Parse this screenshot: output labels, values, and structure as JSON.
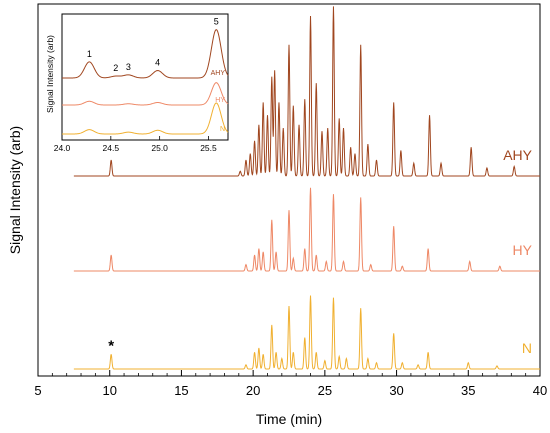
{
  "chart_data": {
    "type": "line",
    "xlabel": "Time (min)",
    "ylabel": "Signal Intensity (arb)",
    "xlim": [
      5,
      40
    ],
    "x_ticks": [
      5,
      10,
      15,
      20,
      25,
      30,
      35,
      40
    ],
    "y_ticks": "none",
    "grid": false,
    "legend": "inline labels at right end of each trace",
    "series": [
      {
        "name": "AHY",
        "color": "#a0461f",
        "baseline": 0,
        "peaks": [
          [
            10.1,
            0.1
          ],
          [
            19.1,
            0.03
          ],
          [
            19.5,
            0.1
          ],
          [
            19.8,
            0.14
          ],
          [
            20.1,
            0.22
          ],
          [
            20.4,
            0.32
          ],
          [
            20.7,
            0.46
          ],
          [
            21.0,
            0.38
          ],
          [
            21.3,
            0.62
          ],
          [
            21.5,
            0.66
          ],
          [
            21.8,
            0.46
          ],
          [
            22.1,
            0.3
          ],
          [
            22.5,
            0.82
          ],
          [
            22.8,
            0.44
          ],
          [
            23.2,
            0.32
          ],
          [
            23.6,
            0.48
          ],
          [
            24.0,
            1.0
          ],
          [
            24.4,
            0.58
          ],
          [
            24.8,
            0.28
          ],
          [
            25.2,
            0.3
          ],
          [
            25.6,
            1.06
          ],
          [
            26.0,
            0.36
          ],
          [
            26.3,
            0.3
          ],
          [
            26.8,
            0.18
          ],
          [
            27.1,
            0.14
          ],
          [
            27.5,
            0.82
          ],
          [
            28.0,
            0.2
          ],
          [
            28.6,
            0.1
          ],
          [
            29.8,
            0.46
          ],
          [
            30.3,
            0.16
          ],
          [
            31.2,
            0.08
          ],
          [
            32.3,
            0.38
          ],
          [
            33.1,
            0.08
          ],
          [
            35.2,
            0.18
          ],
          [
            36.3,
            0.05
          ],
          [
            38.2,
            0.06
          ]
        ]
      },
      {
        "name": "HY",
        "color": "#ee8866",
        "baseline": 0,
        "peaks": [
          [
            10.1,
            0.1
          ],
          [
            19.5,
            0.04
          ],
          [
            20.1,
            0.1
          ],
          [
            20.4,
            0.14
          ],
          [
            20.7,
            0.12
          ],
          [
            21.3,
            0.32
          ],
          [
            21.6,
            0.12
          ],
          [
            22.5,
            0.38
          ],
          [
            22.8,
            0.08
          ],
          [
            23.6,
            0.14
          ],
          [
            24.0,
            0.52
          ],
          [
            24.4,
            0.1
          ],
          [
            25.1,
            0.06
          ],
          [
            25.6,
            0.48
          ],
          [
            26.3,
            0.06
          ],
          [
            27.5,
            0.46
          ],
          [
            28.2,
            0.04
          ],
          [
            29.8,
            0.28
          ],
          [
            30.4,
            0.03
          ],
          [
            32.2,
            0.14
          ],
          [
            35.1,
            0.06
          ],
          [
            37.2,
            0.03
          ]
        ]
      },
      {
        "name": "N",
        "color": "#f0b030",
        "baseline": 0,
        "peaks": [
          [
            10.1,
            0.14
          ],
          [
            19.5,
            0.04
          ],
          [
            20.1,
            0.16
          ],
          [
            20.4,
            0.2
          ],
          [
            20.7,
            0.14
          ],
          [
            21.3,
            0.42
          ],
          [
            21.6,
            0.16
          ],
          [
            22.0,
            0.1
          ],
          [
            22.5,
            0.6
          ],
          [
            22.8,
            0.16
          ],
          [
            23.6,
            0.3
          ],
          [
            24.0,
            0.7
          ],
          [
            24.4,
            0.16
          ],
          [
            25.0,
            0.08
          ],
          [
            25.6,
            0.68
          ],
          [
            26.0,
            0.12
          ],
          [
            26.5,
            0.1
          ],
          [
            27.5,
            0.58
          ],
          [
            28.0,
            0.1
          ],
          [
            28.6,
            0.06
          ],
          [
            29.8,
            0.34
          ],
          [
            30.4,
            0.06
          ],
          [
            31.5,
            0.04
          ],
          [
            32.2,
            0.16
          ],
          [
            35.0,
            0.06
          ],
          [
            37.0,
            0.03
          ]
        ]
      }
    ],
    "annotations": [
      {
        "text": "*",
        "x": 10.1,
        "series": "N"
      }
    ],
    "inset": {
      "type": "line",
      "xlabel": "",
      "ylabel": "Signal Intensity (arb)",
      "xlim": [
        24.0,
        25.7
      ],
      "x_ticks": [
        24.0,
        24.5,
        25.0,
        25.5
      ],
      "x_tick_labels": [
        "24.0",
        "24.5",
        "25.0",
        "25.5"
      ],
      "series": [
        {
          "name": "AHY",
          "color": "#a0461f",
          "peaks": [
            [
              24.28,
              0.26
            ],
            [
              24.55,
              0.03
            ],
            [
              24.68,
              0.05
            ],
            [
              24.98,
              0.12
            ],
            [
              25.58,
              0.78
            ]
          ]
        },
        {
          "name": "HY",
          "color": "#ee8866",
          "peaks": [
            [
              24.28,
              0.06
            ],
            [
              24.68,
              0.02
            ],
            [
              24.98,
              0.04
            ],
            [
              25.58,
              0.36
            ]
          ]
        },
        {
          "name": "N",
          "color": "#f0b030",
          "peaks": [
            [
              24.28,
              0.07
            ],
            [
              24.68,
              0.03
            ],
            [
              24.98,
              0.06
            ],
            [
              25.58,
              0.5
            ]
          ]
        }
      ],
      "peak_labels": [
        {
          "text": "1",
          "x": 24.28
        },
        {
          "text": "2",
          "x": 24.55
        },
        {
          "text": "3",
          "x": 24.68
        },
        {
          "text": "4",
          "x": 24.98
        },
        {
          "text": "5",
          "x": 25.58
        }
      ]
    }
  }
}
